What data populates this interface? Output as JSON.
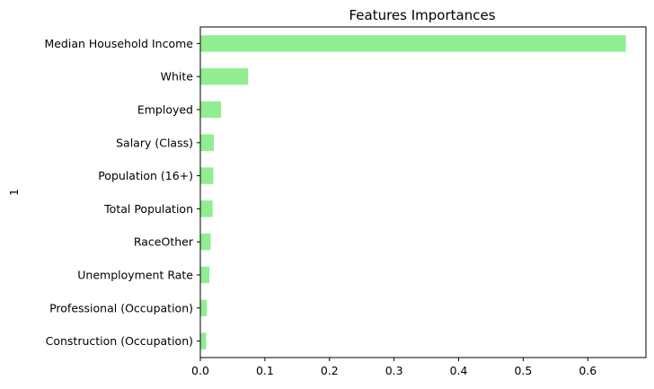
{
  "chart_data": {
    "type": "bar",
    "orientation": "horizontal",
    "title": "Features Importances",
    "xlabel": "",
    "ylabel": "1",
    "categories": [
      "Median Household Income",
      "White",
      "Employed",
      "Salary (Class)",
      "Population (16+)",
      "Total Population",
      "RaceOther",
      "Unemployment Rate",
      "Professional (Occupation)",
      "Construction (Occupation)"
    ],
    "values": [
      0.659,
      0.074,
      0.032,
      0.021,
      0.02,
      0.019,
      0.016,
      0.014,
      0.01,
      0.009
    ],
    "xlim": [
      0,
      0.69
    ],
    "xticks": [
      0.0,
      0.1,
      0.2,
      0.3,
      0.4,
      0.5,
      0.6
    ],
    "xtick_labels": [
      "0.0",
      "0.1",
      "0.2",
      "0.3",
      "0.4",
      "0.5",
      "0.6"
    ],
    "grid": false,
    "legend": "none",
    "bar_color": "#90ee90"
  }
}
